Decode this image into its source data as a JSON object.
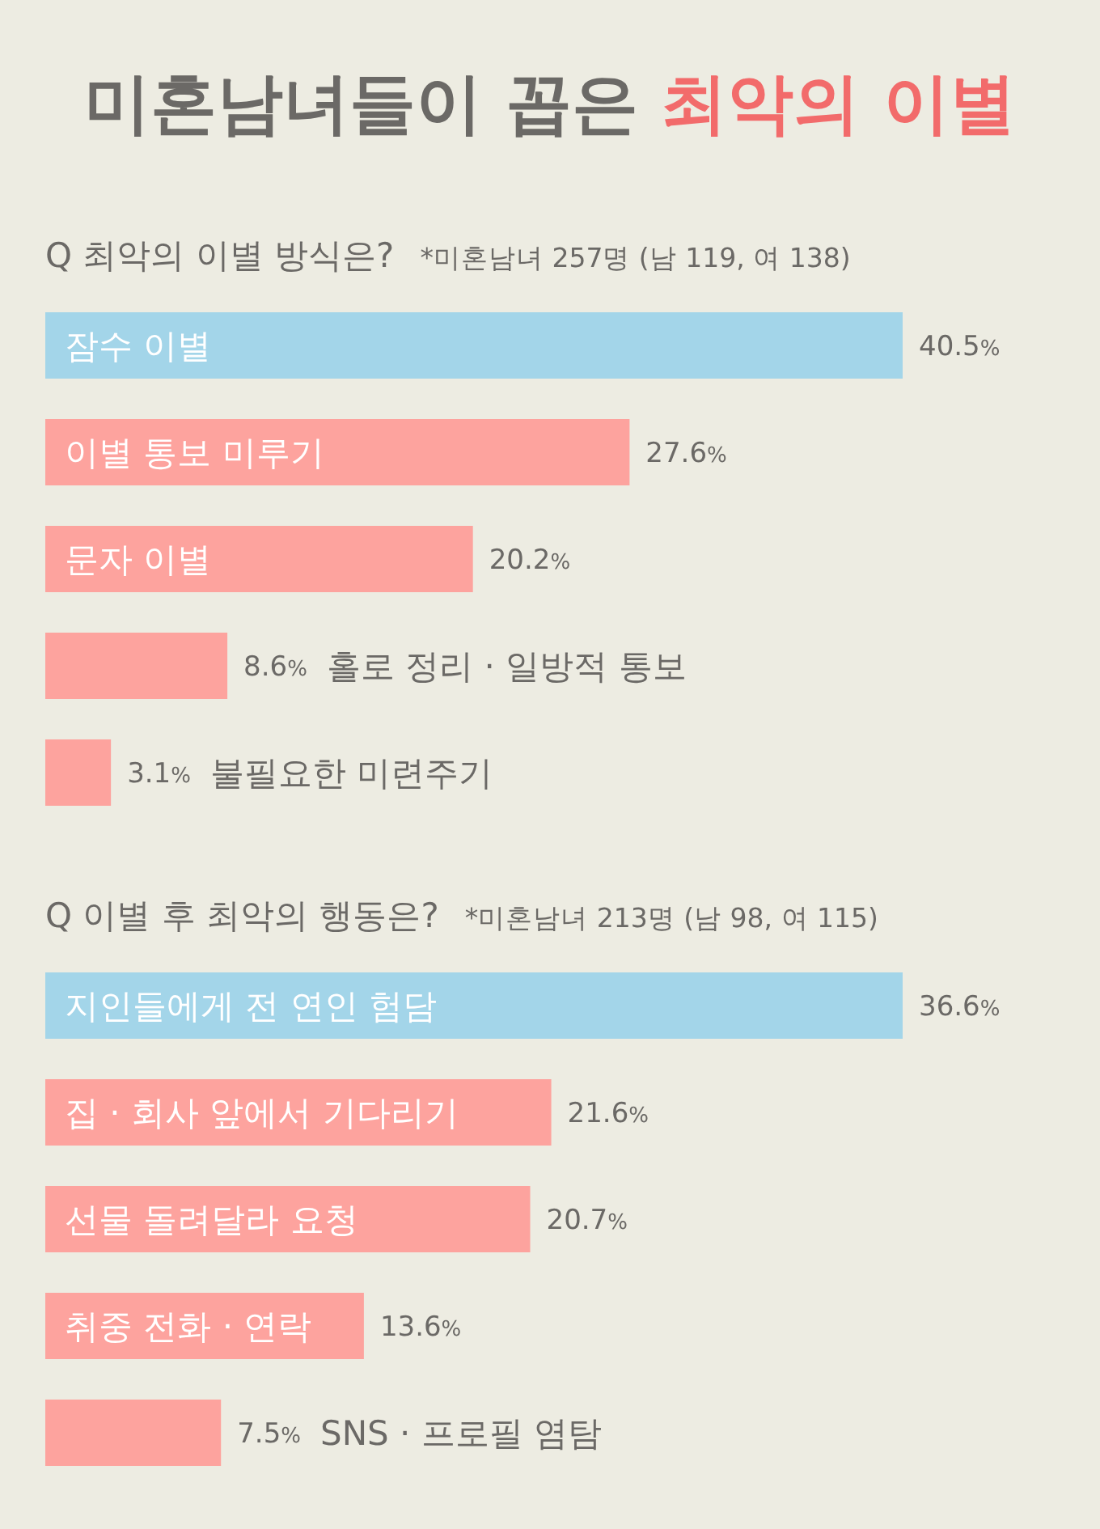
{
  "chart_data": [
    {
      "type": "bar",
      "orientation": "horizontal",
      "title": "미혼남녀들이 꼽은 최악의 이별",
      "subtitle": "Q 최악의 이별 방식은?",
      "annotations": [
        "*미혼남녀 257명 (남 119, 여 138)"
      ],
      "categories": [
        "잠수 이별",
        "이별 통보 미루기",
        "문자 이별",
        "홀로 정리 · 일방적 통보",
        "불필요한 미련주기"
      ],
      "values": [
        40.5,
        27.6,
        20.2,
        8.6,
        3.1
      ],
      "value_labels": [
        "40.5%",
        "27.6%",
        "20.2%",
        "8.6%",
        "3.1%"
      ],
      "colors": [
        "#a3d5e9",
        "#fda39e",
        "#fda39e",
        "#fda39e",
        "#fda39e"
      ]
    },
    {
      "type": "bar",
      "orientation": "horizontal",
      "subtitle": "Q 이별 후 최악의 행동은?",
      "annotations": [
        "*미혼남녀 213명 (남 98, 여 115)"
      ],
      "categories": [
        "지인들에게 전 연인 험담",
        "집 · 회사 앞에서 기다리기",
        "선물 돌려달라 요청",
        "취중 전화 · 연락",
        "SNS · 프로필 염탐"
      ],
      "values": [
        36.6,
        21.6,
        20.7,
        13.6,
        7.5
      ],
      "value_labels": [
        "36.6%",
        "21.6%",
        "20.7%",
        "13.6%",
        "7.5%"
      ],
      "colors": [
        "#a3d5e9",
        "#fda39e",
        "#fda39e",
        "#fda39e",
        "#fda39e"
      ]
    }
  ]
}
